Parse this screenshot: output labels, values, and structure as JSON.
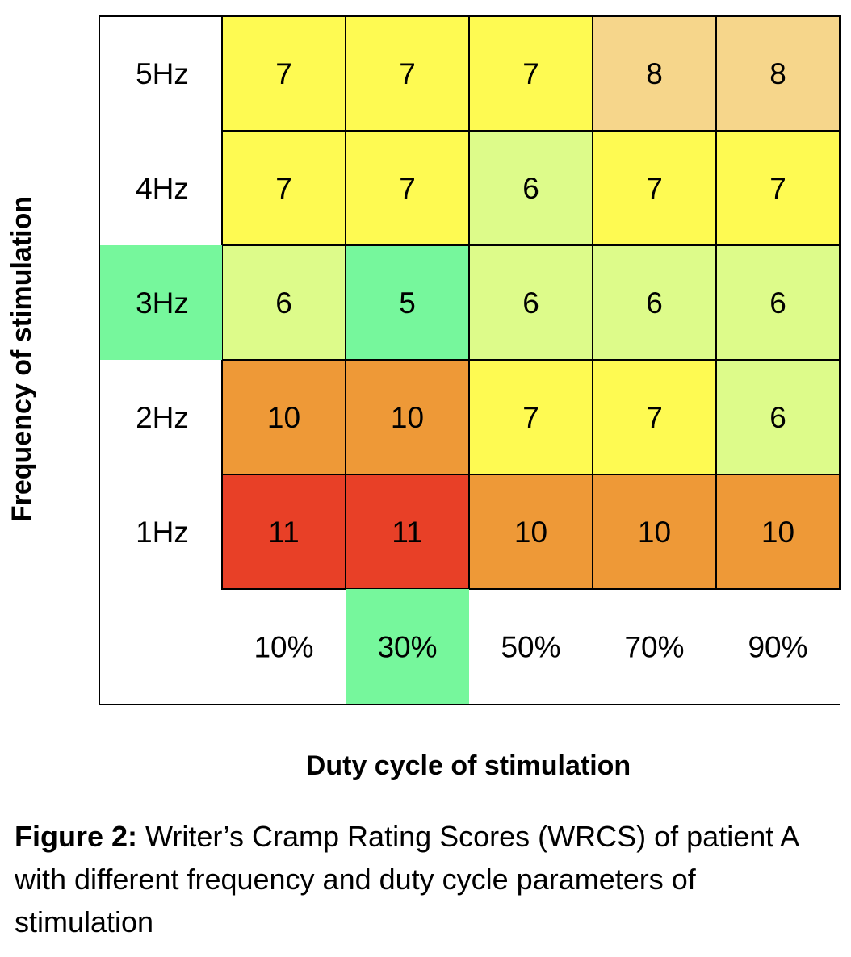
{
  "chart_data": {
    "type": "heatmap",
    "xlabel": "Duty cycle of stimulation",
    "ylabel": "Frequency of stimulation",
    "x_categories": [
      "10%",
      "30%",
      "50%",
      "70%",
      "90%"
    ],
    "y_categories": [
      "5Hz",
      "4Hz",
      "3Hz",
      "2Hz",
      "1Hz"
    ],
    "values": [
      [
        7,
        7,
        7,
        8,
        8
      ],
      [
        7,
        7,
        6,
        7,
        7
      ],
      [
        6,
        5,
        6,
        6,
        6
      ],
      [
        10,
        10,
        7,
        7,
        6
      ],
      [
        11,
        11,
        10,
        10,
        10
      ]
    ],
    "colors": {
      "5": "#76f79c",
      "6": "#ddfb8a",
      "7": "#fefa52",
      "8": "#f6d68b",
      "10": "#ee9937",
      "11": "#e84027"
    },
    "highlight": {
      "y_category": "3Hz",
      "x_category": "30%",
      "color": "#76f79c"
    }
  },
  "caption": {
    "label": "Figure 2:",
    "text": " Writer’s Cramp Rating Scores (WRCS) of patient A with different frequency and duty cycle parameters of stimulation"
  }
}
